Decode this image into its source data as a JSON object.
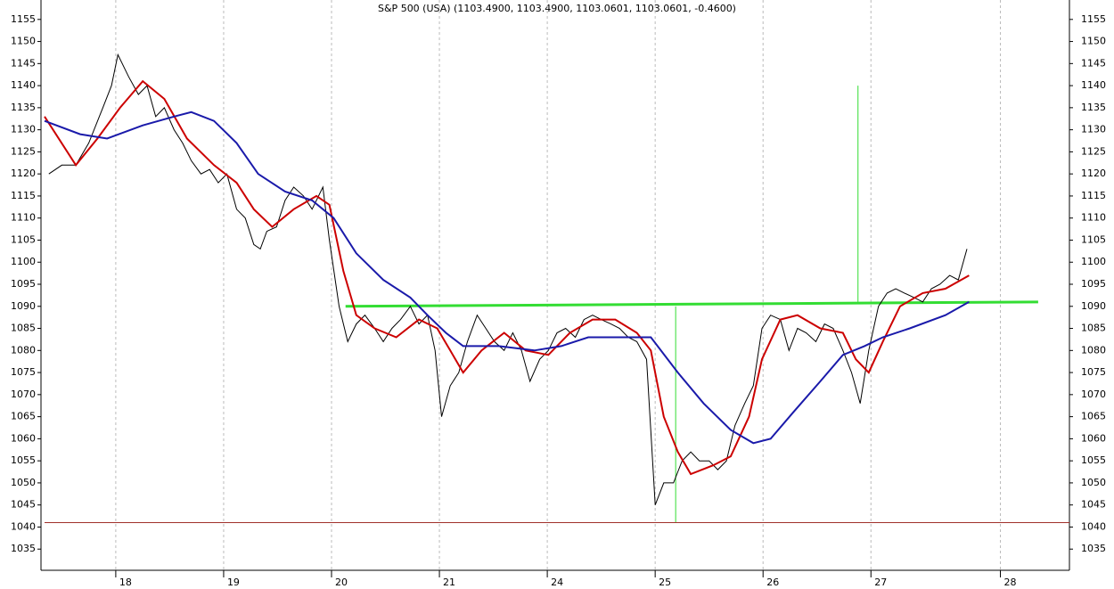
{
  "chart_data": {
    "type": "line",
    "title": "S&P 500 (USA) (1103.4900, 1103.4900, 1103.0601, 1103.0601, -0.4600)",
    "xlim": [
      -0.66,
      8.84
    ],
    "ylim": [
      1030.2,
      1159.4
    ],
    "xticks": [
      {
        "value": 0,
        "label": "18"
      },
      {
        "value": 1,
        "label": "19"
      },
      {
        "value": 2,
        "label": "20"
      },
      {
        "value": 3,
        "label": "21"
      },
      {
        "value": 4,
        "label": "24"
      },
      {
        "value": 5,
        "label": "25"
      },
      {
        "value": 6,
        "label": "26"
      },
      {
        "value": 7,
        "label": "27"
      },
      {
        "value": 8.2,
        "label": "28"
      }
    ],
    "yticks": [
      1035,
      1040,
      1045,
      1050,
      1055,
      1060,
      1065,
      1070,
      1075,
      1080,
      1085,
      1090,
      1095,
      1100,
      1105,
      1110,
      1115,
      1120,
      1125,
      1130,
      1135,
      1140,
      1145,
      1150,
      1155
    ],
    "grid": true,
    "series": [
      {
        "color": "#000000",
        "x": [
          -0.62,
          -0.5,
          -0.37,
          -0.25,
          -0.12,
          -0.04,
          0.02,
          0.12,
          0.21,
          0.29,
          0.37,
          0.45,
          0.54,
          0.62,
          0.7,
          0.79,
          0.87,
          0.95,
          1.03,
          1.12,
          1.2,
          1.28,
          1.34,
          1.4,
          1.49,
          1.57,
          1.65,
          1.74,
          1.82,
          1.92,
          1.98,
          2.07,
          2.15,
          2.23,
          2.31,
          2.4,
          2.48,
          2.56,
          2.64,
          2.73,
          2.81,
          2.89,
          2.96,
          3.02,
          3.1,
          3.18,
          3.26,
          3.35,
          3.43,
          3.51,
          3.6,
          3.68,
          3.76,
          3.84,
          3.93,
          4.01,
          4.09,
          4.17,
          4.26,
          4.34,
          4.42,
          4.5,
          4.59,
          4.67,
          4.75,
          4.83,
          4.92,
          5.0,
          5.08,
          5.17,
          5.25,
          5.33,
          5.41,
          5.5,
          5.58,
          5.66,
          5.74,
          5.83,
          5.91,
          5.99,
          6.07,
          6.16,
          6.24,
          6.32,
          6.4,
          6.49,
          6.57,
          6.65,
          6.74,
          6.82,
          6.9,
          6.98,
          7.07,
          7.15,
          7.23,
          7.31,
          7.4,
          7.48,
          7.56,
          7.64,
          7.73,
          7.81,
          7.89
        ],
        "values": [
          1120,
          1122,
          1122,
          1127,
          1135,
          1140,
          1147,
          1142,
          1138,
          1140,
          1133,
          1135,
          1130,
          1127,
          1123,
          1120,
          1121,
          1118,
          1120,
          1112,
          1110,
          1104,
          1103,
          1107,
          1108,
          1114,
          1117,
          1115,
          1112,
          1117,
          1105,
          1090,
          1082,
          1086,
          1088,
          1085,
          1082,
          1085,
          1087,
          1090,
          1086,
          1088,
          1080,
          1065,
          1072,
          1075,
          1082,
          1088,
          1085,
          1082,
          1080,
          1084,
          1080,
          1073,
          1078,
          1080,
          1084,
          1085,
          1083,
          1087,
          1088,
          1087,
          1086,
          1085,
          1083,
          1082,
          1078,
          1045,
          1050,
          1050,
          1055,
          1057,
          1055,
          1055,
          1053,
          1055,
          1063,
          1068,
          1072,
          1085,
          1088,
          1087,
          1080,
          1085,
          1084,
          1082,
          1086,
          1085,
          1080,
          1075,
          1068,
          1080,
          1090,
          1093,
          1094,
          1093,
          1092,
          1091,
          1094,
          1095,
          1097,
          1096,
          1103
        ]
      },
      {
        "color": "#cc0000",
        "x": [
          -0.66,
          -0.37,
          -0.17,
          0.04,
          0.25,
          0.45,
          0.66,
          0.91,
          1.12,
          1.28,
          1.45,
          1.65,
          1.86,
          1.98,
          2.11,
          2.23,
          2.4,
          2.6,
          2.81,
          2.98,
          3.1,
          3.22,
          3.39,
          3.6,
          3.8,
          4.01,
          4.21,
          4.42,
          4.63,
          4.83,
          4.96,
          5.08,
          5.21,
          5.33,
          5.54,
          5.7,
          5.87,
          5.99,
          6.16,
          6.32,
          6.53,
          6.74,
          6.86,
          6.98,
          7.11,
          7.27,
          7.48,
          7.69,
          7.91
        ],
        "values": [
          1133,
          1122,
          1128,
          1135,
          1141,
          1137,
          1128,
          1122,
          1118,
          1112,
          1108,
          1112,
          1115,
          1113,
          1098,
          1088,
          1085,
          1083,
          1087,
          1085,
          1080,
          1075,
          1080,
          1084,
          1080,
          1079,
          1084,
          1087,
          1087,
          1084,
          1080,
          1065,
          1057,
          1052,
          1054,
          1056,
          1065,
          1078,
          1087,
          1088,
          1085,
          1084,
          1078,
          1075,
          1082,
          1090,
          1093,
          1094,
          1097
        ]
      },
      {
        "color": "#1a1aaa",
        "x": [
          -0.66,
          -0.33,
          -0.08,
          0.25,
          0.54,
          0.7,
          0.91,
          1.12,
          1.32,
          1.57,
          1.82,
          2.02,
          2.23,
          2.48,
          2.73,
          2.89,
          3.06,
          3.22,
          3.55,
          3.88,
          4.13,
          4.38,
          4.71,
          4.96,
          5.21,
          5.45,
          5.7,
          5.91,
          6.07,
          6.28,
          6.53,
          6.74,
          6.94,
          7.11,
          7.36,
          7.69,
          7.91
        ],
        "values": [
          1132,
          1129,
          1128,
          1131,
          1133,
          1134,
          1132,
          1127,
          1120,
          1116,
          1114,
          1110,
          1102,
          1096,
          1092,
          1088,
          1084,
          1081,
          1081,
          1080,
          1081,
          1083,
          1083,
          1083,
          1075,
          1068,
          1062,
          1059,
          1060,
          1066,
          1073,
          1079,
          1081,
          1083,
          1085,
          1088,
          1091
        ]
      }
    ],
    "annotation_lines": [
      {
        "color": "#33dd33",
        "x": [
          2.13,
          8.55
        ],
        "y": [
          1090,
          1091
        ]
      },
      {
        "color": "#33dd33",
        "x": [
          5.19,
          5.19
        ],
        "y": [
          1090,
          1041
        ]
      },
      {
        "color": "#33dd33",
        "x": [
          6.88,
          6.88
        ],
        "y": [
          1140,
          1091
        ]
      },
      {
        "color": "#a0302a",
        "x": [
          -0.66,
          8.84
        ],
        "y": [
          1041,
          1041
        ]
      }
    ]
  }
}
